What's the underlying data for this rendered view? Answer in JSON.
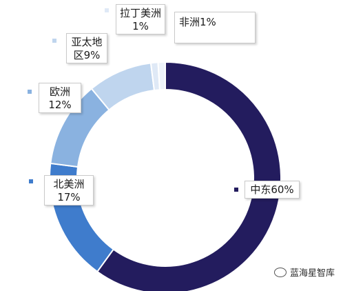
{
  "chart_data": {
    "type": "pie",
    "slices": [
      {
        "name": "中东",
        "value": 60,
        "label_value": "60%",
        "color": "#231c5e"
      },
      {
        "name": "北美洲",
        "value": 17,
        "label_value": "17%",
        "color": "#3f7ccc"
      },
      {
        "name": "欧洲",
        "value": 12,
        "label_value": "12%",
        "color": "#8ab2e0"
      },
      {
        "name": "亚太地区",
        "value": 9,
        "label_value": "9%",
        "color": "#bfd5ee"
      },
      {
        "name": "拉丁美洲",
        "value": 1,
        "label_value": "1%",
        "color": "#dfe9f6"
      },
      {
        "name": "非洲",
        "value": 1,
        "label_value": "1%",
        "color": "#eef3fa"
      }
    ]
  },
  "callouts": {
    "middle_east": {
      "name": "中东",
      "value": "60%"
    },
    "north_america": {
      "name": "北美洲",
      "value": "17%"
    },
    "europe": {
      "name": "欧洲",
      "value": "12%"
    },
    "asia_pacific": {
      "name": "亚太地",
      "value": "区9%"
    },
    "latin_america": {
      "name": "拉丁美洲",
      "value": "1%"
    },
    "africa": {
      "name": "非洲",
      "value": "1%"
    }
  },
  "watermark": {
    "text": "蓝海星智库",
    "icon": "wechat-icon"
  }
}
